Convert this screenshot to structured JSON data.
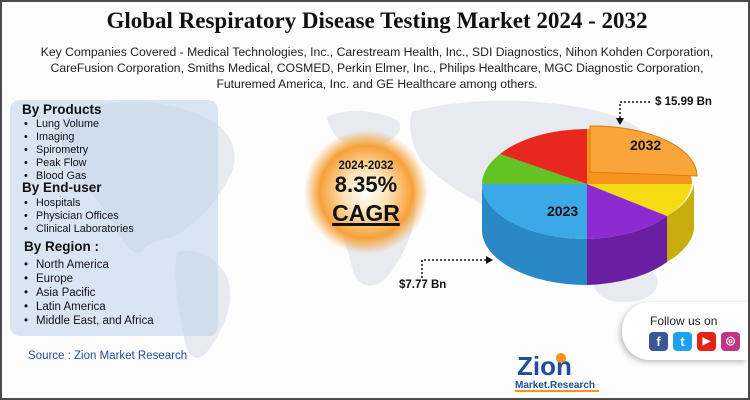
{
  "title": "Global Respiratory Disease Testing Market 2024 - 2032",
  "subtitle_line1": "Key Companies Covered - Medical Technologies, Inc., Carestream Health, Inc., SDI Diagnostics, Nihon Kohden Corporation,",
  "subtitle_line2": "CareFusion Corporation, Smiths Medical, COSMED, Perkin Elmer, Inc., Philips Healthcare, MGC Diagnostic Corporation,",
  "subtitle_line3": "Futuremed America, Inc. and GE Healthcare among others.",
  "segments": {
    "products": {
      "heading": "By Products",
      "items": [
        "Lung Volume",
        "Imaging",
        "Spirometry",
        "Peak Flow",
        "Blood Gas"
      ]
    },
    "end_user": {
      "heading": "By End-user",
      "items": [
        "Hospitals",
        "Physician Offices",
        "Clinical Laboratories"
      ]
    },
    "region": {
      "heading": "By Region :",
      "items": [
        "North America",
        "Europe",
        "Asia Pacific",
        "Latin America",
        "Middle East, and Africa"
      ]
    }
  },
  "cagr": {
    "years": "2024-2032",
    "value": "8.35%",
    "label": "CAGR"
  },
  "market": {
    "year_start": "2023",
    "year_end": "2032",
    "value_start": "$7.77 Bn",
    "value_end": "$ 15.99 Bn"
  },
  "source": "Source : Zion Market Research",
  "follow": {
    "label": "Follow us on",
    "icons": [
      "facebook-icon",
      "twitter-icon",
      "youtube-icon",
      "instagram-icon"
    ]
  },
  "logo": {
    "brand": "Zion",
    "sub": "Market.Research"
  },
  "colors": {
    "accent_blue": "#1f4e9b",
    "cagr_glow": "#f6a13a",
    "pie_blue": "#3aa9e6",
    "pie_green": "#63c224",
    "pie_red": "#e8281e",
    "pie_orange": "#f7931e",
    "pie_yellow": "#f5dc12",
    "pie_purple": "#8e2bd0"
  }
}
